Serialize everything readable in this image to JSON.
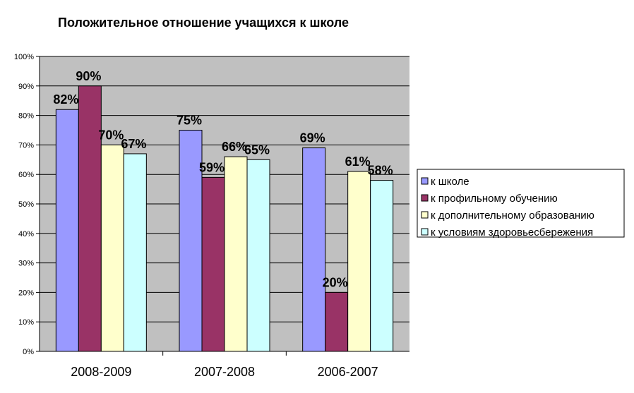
{
  "chart_data": {
    "type": "bar",
    "title": "Положительное отношение учащихся к школе",
    "xlabel": "",
    "ylabel": "",
    "categories": [
      "2008-2009",
      "2007-2008",
      "2006-2007"
    ],
    "series": [
      {
        "name": "к школе",
        "values": [
          82,
          75,
          69
        ],
        "labels": [
          "82%",
          "75%",
          "69%"
        ]
      },
      {
        "name": "к профильному обучению",
        "values": [
          90,
          59,
          20
        ],
        "labels": [
          "90%",
          "59%",
          "20%"
        ]
      },
      {
        "name": "к дополнительному образованию",
        "values": [
          70,
          66,
          61
        ],
        "labels": [
          "70%",
          "66%",
          "61%"
        ]
      },
      {
        "name": "к условиям здоровьесбережения",
        "values": [
          67,
          65,
          58
        ],
        "labels": [
          "67%",
          "65%",
          "58%"
        ]
      }
    ],
    "ylim": [
      0,
      100
    ],
    "yticks": [
      "0%",
      "10%",
      "20%",
      "30%",
      "40%",
      "50%",
      "60%",
      "70%",
      "80%",
      "90%",
      "100%"
    ],
    "grid": true,
    "legend": "right",
    "colors": {
      "series": [
        "#9999ff",
        "#993366",
        "#ffffcc",
        "#ccffff"
      ],
      "plot_background": "#c0c0c0",
      "gridline": "#000000"
    }
  }
}
